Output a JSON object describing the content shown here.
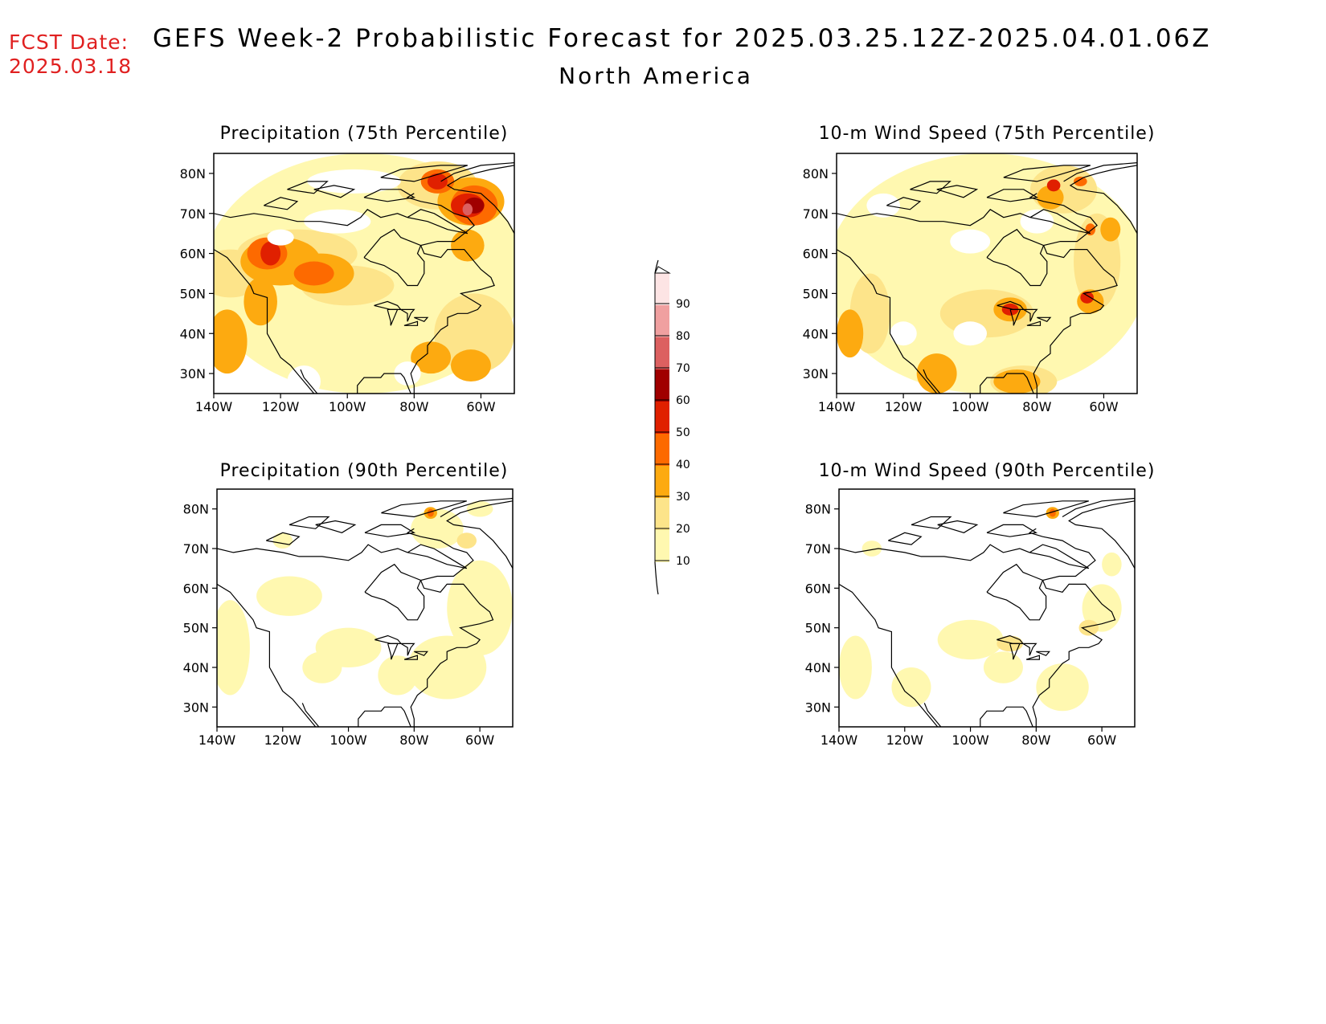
{
  "header": {
    "fcst_label": "FCST Date:",
    "fcst_date": "2025.03.18",
    "title": "GEFS Week-2 Probabilistic Forecast for 2025.03.25.12Z-2025.04.01.06Z",
    "region": "North America"
  },
  "panels": [
    {
      "title": "Precipitation (75th Percentile)",
      "variable": "precipitation",
      "percentile": 75
    },
    {
      "title": "10-m Wind Speed (75th Percentile)",
      "variable": "wind",
      "percentile": 75
    },
    {
      "title": "Precipitation (90th Percentile)",
      "variable": "precipitation",
      "percentile": 90
    },
    {
      "title": "10-m Wind Speed (90th Percentile)",
      "variable": "wind",
      "percentile": 90
    }
  ],
  "axes": {
    "lat_labels": [
      "80N",
      "70N",
      "60N",
      "50N",
      "40N",
      "30N"
    ],
    "lon_labels": [
      "140W",
      "120W",
      "100W",
      "80W",
      "60W"
    ],
    "lat_values": [
      80,
      70,
      60,
      50,
      40,
      30
    ],
    "lon_values": [
      -140,
      -120,
      -100,
      -80,
      -60
    ]
  },
  "colorbar": {
    "labels": [
      "10",
      "20",
      "30",
      "40",
      "50",
      "60",
      "70",
      "80",
      "90"
    ],
    "colors": [
      "#fff8b0",
      "#fde48a",
      "#fdaa10",
      "#fd6a00",
      "#e02000",
      "#a00000",
      "#dc6060",
      "#f0a0a0",
      "#fde4e4"
    ]
  }
}
